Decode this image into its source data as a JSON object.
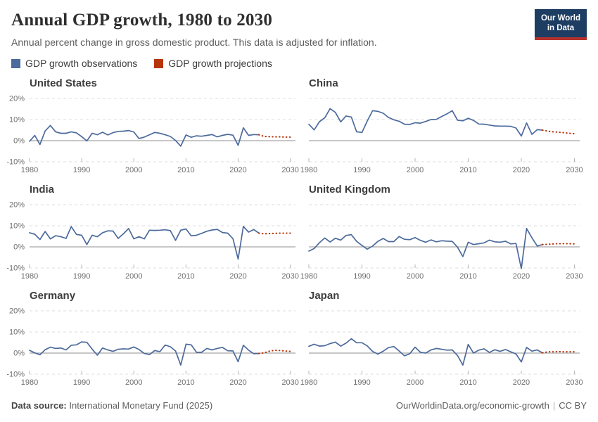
{
  "header": {
    "title": "Annual GDP growth, 1980 to 2030",
    "subtitle": "Annual percent change in gross domestic product. This data is adjusted for inflation."
  },
  "logo": {
    "line1": "Our World",
    "line2": "in Data",
    "bg_color": "#1d3d63",
    "bar_color": "#b5312b"
  },
  "legend": {
    "items": [
      {
        "label": "GDP growth observations",
        "color": "#4c6a9c"
      },
      {
        "label": "GDP growth projections",
        "color": "#b6350a"
      }
    ]
  },
  "chart_data": {
    "type": "line",
    "title": "Annual GDP growth, 1980 to 2030",
    "ylabel": "",
    "xlabel": "",
    "xlim": [
      1980,
      2031
    ],
    "ylim": [
      -10,
      20
    ],
    "grid": true,
    "legend_position": "top",
    "colors": {
      "observations": "#4c6a9c",
      "projections": "#b6350a",
      "gridline": "#dcdcdc",
      "zero_line": "#8f8f8f"
    },
    "y_ticks": [
      {
        "value": 20,
        "label": "20%"
      },
      {
        "value": 10,
        "label": "10%"
      },
      {
        "value": 0,
        "label": "0%"
      },
      {
        "value": -10,
        "label": "-10%"
      }
    ],
    "x_ticks": [
      {
        "value": 1980,
        "label": "1980"
      },
      {
        "value": 1990,
        "label": "1990"
      },
      {
        "value": 2000,
        "label": "2000"
      },
      {
        "value": 2010,
        "label": "2010"
      },
      {
        "value": 2020,
        "label": "2020"
      },
      {
        "value": 2030,
        "label": "2030"
      }
    ],
    "charts": [
      {
        "title": "United States",
        "show_y_axis_labels": true,
        "observations": {
          "start_year": 1980,
          "end_year": 2024,
          "values": [
            -0.3,
            2.5,
            -1.8,
            4.6,
            7.2,
            4.2,
            3.5,
            3.5,
            4.2,
            3.7,
            1.9,
            -0.1,
            3.5,
            2.8,
            4.0,
            2.7,
            3.8,
            4.4,
            4.5,
            4.8,
            4.1,
            1.0,
            1.7,
            2.8,
            3.9,
            3.5,
            2.8,
            2.0,
            0.1,
            -2.6,
            2.7,
            1.6,
            2.3,
            2.1,
            2.5,
            2.9,
            1.8,
            2.5,
            3.0,
            2.6,
            -2.2,
            6.1,
            2.5,
            2.9,
            2.8
          ]
        },
        "projections": {
          "start_year": 2024,
          "end_year": 2030,
          "values": [
            2.8,
            2.0,
            1.9,
            1.8,
            1.8,
            1.7,
            1.7
          ]
        }
      },
      {
        "title": "China",
        "show_y_axis_labels": false,
        "observations": {
          "start_year": 1980,
          "end_year": 2024,
          "values": [
            7.8,
            5.1,
            9.0,
            10.8,
            15.2,
            13.4,
            8.9,
            11.7,
            11.2,
            4.2,
            3.9,
            9.3,
            14.2,
            13.9,
            13.0,
            11.0,
            9.9,
            9.2,
            7.8,
            7.7,
            8.5,
            8.3,
            9.1,
            10.0,
            10.1,
            11.4,
            12.7,
            14.2,
            9.7,
            9.4,
            10.6,
            9.6,
            7.9,
            7.8,
            7.4,
            7.0,
            6.9,
            6.9,
            6.8,
            6.0,
            2.2,
            8.4,
            3.0,
            5.2,
            5.0
          ]
        },
        "projections": {
          "start_year": 2024,
          "end_year": 2030,
          "values": [
            5.0,
            4.5,
            4.2,
            4.0,
            3.8,
            3.5,
            3.3
          ]
        }
      },
      {
        "title": "India",
        "show_y_axis_labels": true,
        "observations": {
          "start_year": 1980,
          "end_year": 2024,
          "values": [
            6.7,
            6.0,
            3.5,
            7.3,
            3.8,
            5.3,
            4.8,
            4.0,
            9.6,
            5.9,
            5.5,
            1.1,
            5.5,
            4.8,
            6.7,
            7.6,
            7.5,
            4.0,
            6.2,
            8.7,
            3.8,
            4.8,
            3.8,
            7.9,
            7.8,
            7.9,
            8.1,
            7.7,
            3.1,
            7.9,
            8.5,
            5.2,
            5.5,
            6.4,
            7.4,
            8.0,
            8.3,
            6.8,
            6.5,
            3.9,
            -5.8,
            9.7,
            7.0,
            8.2,
            6.5
          ]
        },
        "projections": {
          "start_year": 2024,
          "end_year": 2030,
          "values": [
            6.5,
            6.2,
            6.3,
            6.4,
            6.5,
            6.5,
            6.5
          ]
        }
      },
      {
        "title": "United Kingdom",
        "show_y_axis_labels": false,
        "observations": {
          "start_year": 1980,
          "end_year": 2024,
          "values": [
            -2.0,
            -0.8,
            2.0,
            4.2,
            2.3,
            4.1,
            3.2,
            5.4,
            5.8,
            2.6,
            0.7,
            -1.1,
            0.4,
            2.6,
            4.0,
            2.5,
            2.5,
            4.9,
            3.6,
            3.4,
            4.4,
            3.1,
            2.2,
            3.3,
            2.4,
            2.9,
            2.7,
            2.6,
            -0.2,
            -4.6,
            2.2,
            1.1,
            1.5,
            1.9,
            3.2,
            2.4,
            2.2,
            2.7,
            1.4,
            1.6,
            -10.3,
            8.7,
            4.3,
            0.4,
            1.1
          ]
        },
        "projections": {
          "start_year": 2024,
          "end_year": 2030,
          "values": [
            1.1,
            1.2,
            1.4,
            1.5,
            1.5,
            1.5,
            1.4
          ]
        }
      },
      {
        "title": "Germany",
        "show_y_axis_labels": true,
        "observations": {
          "start_year": 1980,
          "end_year": 2024,
          "values": [
            1.3,
            0.1,
            -0.8,
            1.6,
            2.8,
            2.2,
            2.4,
            1.5,
            3.7,
            3.9,
            5.3,
            5.1,
            1.9,
            -1.0,
            2.4,
            1.5,
            0.8,
            1.8,
            2.0,
            1.9,
            2.9,
            1.7,
            -0.2,
            -0.7,
            1.2,
            0.7,
            3.8,
            3.0,
            1.0,
            -5.7,
            4.2,
            3.9,
            0.4,
            0.4,
            2.2,
            1.5,
            2.2,
            2.7,
            1.1,
            1.0,
            -4.1,
            3.7,
            1.4,
            -0.3,
            -0.2
          ]
        },
        "projections": {
          "start_year": 2024,
          "end_year": 2030,
          "values": [
            -0.2,
            0.1,
            0.9,
            1.3,
            1.2,
            1.0,
            0.8
          ]
        }
      },
      {
        "title": "Japan",
        "show_y_axis_labels": false,
        "observations": {
          "start_year": 1980,
          "end_year": 2024,
          "values": [
            3.2,
            4.2,
            3.3,
            3.5,
            4.5,
            5.2,
            3.3,
            4.7,
            6.8,
            4.9,
            4.9,
            3.4,
            0.8,
            -0.5,
            0.9,
            2.6,
            3.1,
            1.0,
            -1.3,
            -0.3,
            2.8,
            0.4,
            0.0,
            1.5,
            2.2,
            1.8,
            1.4,
            1.5,
            -1.2,
            -5.7,
            4.1,
            0.0,
            1.4,
            2.0,
            0.3,
            1.6,
            0.8,
            1.7,
            0.6,
            -0.4,
            -4.2,
            2.7,
            0.9,
            1.5,
            0.1
          ]
        },
        "projections": {
          "start_year": 2024,
          "end_year": 2030,
          "values": [
            0.1,
            0.6,
            0.6,
            0.7,
            0.6,
            0.6,
            0.6
          ]
        }
      }
    ]
  },
  "footer": {
    "source_label": "Data source:",
    "source": "International Monetary Fund (2025)",
    "url": "OurWorldinData.org/economic-growth",
    "pipe": "|",
    "license": "CC BY"
  }
}
